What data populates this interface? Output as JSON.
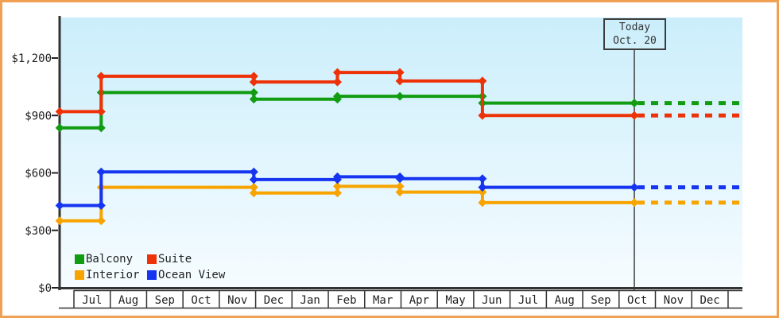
{
  "frame": {
    "border_color": "#f0a052",
    "plot_bg_top": "#cbeefb",
    "plot_bg_bottom": "#f6fcff",
    "axis_color": "#333333"
  },
  "today_marker": {
    "line1": "Today",
    "line2": "Oct. 20",
    "x": 15.42
  },
  "legend": {
    "items": [
      {
        "name": "Balcony",
        "color": "#119c11"
      },
      {
        "name": "Suite",
        "color": "#ee3208"
      },
      {
        "name": "Interior",
        "color": "#f8a400"
      },
      {
        "name": "Ocean View",
        "color": "#1535f0"
      }
    ]
  },
  "chart_data": {
    "type": "line",
    "step_style": "step-after",
    "title": "",
    "x_axis": {
      "months": [
        "Jul",
        "Aug",
        "Sep",
        "Oct",
        "Nov",
        "Dec",
        "Jan",
        "Feb",
        "Mar",
        "Apr",
        "May",
        "Jun",
        "Jul",
        "Aug",
        "Sep",
        "Oct",
        "Nov",
        "Dec"
      ]
    },
    "y_axis": {
      "tick_values": [
        0,
        300,
        600,
        900,
        1200
      ],
      "tick_labels": [
        "$0",
        "$300",
        "$600",
        "$900",
        "$1,200"
      ],
      "min": 0,
      "max": 1450,
      "grid": false
    },
    "x_start": -0.39,
    "x_end": 18.39,
    "today_x": 15.42,
    "legend_position": "bottom-left-inside",
    "series": [
      {
        "name": "Interior",
        "color": "#f8a400",
        "points": [
          {
            "x": -0.39,
            "price": 350
          },
          {
            "x": 0.75,
            "price": 525
          },
          {
            "x": 4.95,
            "price": 495
          },
          {
            "x": 7.25,
            "price": 530
          },
          {
            "x": 8.97,
            "price": 500
          },
          {
            "x": 11.24,
            "price": 445
          }
        ],
        "projected_price": 445
      },
      {
        "name": "Ocean View",
        "color": "#1535f0",
        "points": [
          {
            "x": -0.39,
            "price": 430
          },
          {
            "x": 0.75,
            "price": 605
          },
          {
            "x": 4.95,
            "price": 565
          },
          {
            "x": 7.25,
            "price": 580
          },
          {
            "x": 8.97,
            "price": 570
          },
          {
            "x": 11.24,
            "price": 525
          }
        ],
        "projected_price": 525
      },
      {
        "name": "Balcony",
        "color": "#119c11",
        "points": [
          {
            "x": -0.39,
            "price": 835
          },
          {
            "x": 0.75,
            "price": 1020
          },
          {
            "x": 4.95,
            "price": 985
          },
          {
            "x": 7.25,
            "price": 1000
          },
          {
            "x": 8.97,
            "price": 1000
          },
          {
            "x": 11.24,
            "price": 965
          }
        ],
        "projected_price": 965
      },
      {
        "name": "Suite",
        "color": "#ee3208",
        "points": [
          {
            "x": -0.39,
            "price": 920
          },
          {
            "x": 0.75,
            "price": 1105
          },
          {
            "x": 4.95,
            "price": 1075
          },
          {
            "x": 7.25,
            "price": 1125
          },
          {
            "x": 8.97,
            "price": 1080
          },
          {
            "x": 11.24,
            "price": 900
          }
        ],
        "projected_price": 900
      }
    ]
  }
}
